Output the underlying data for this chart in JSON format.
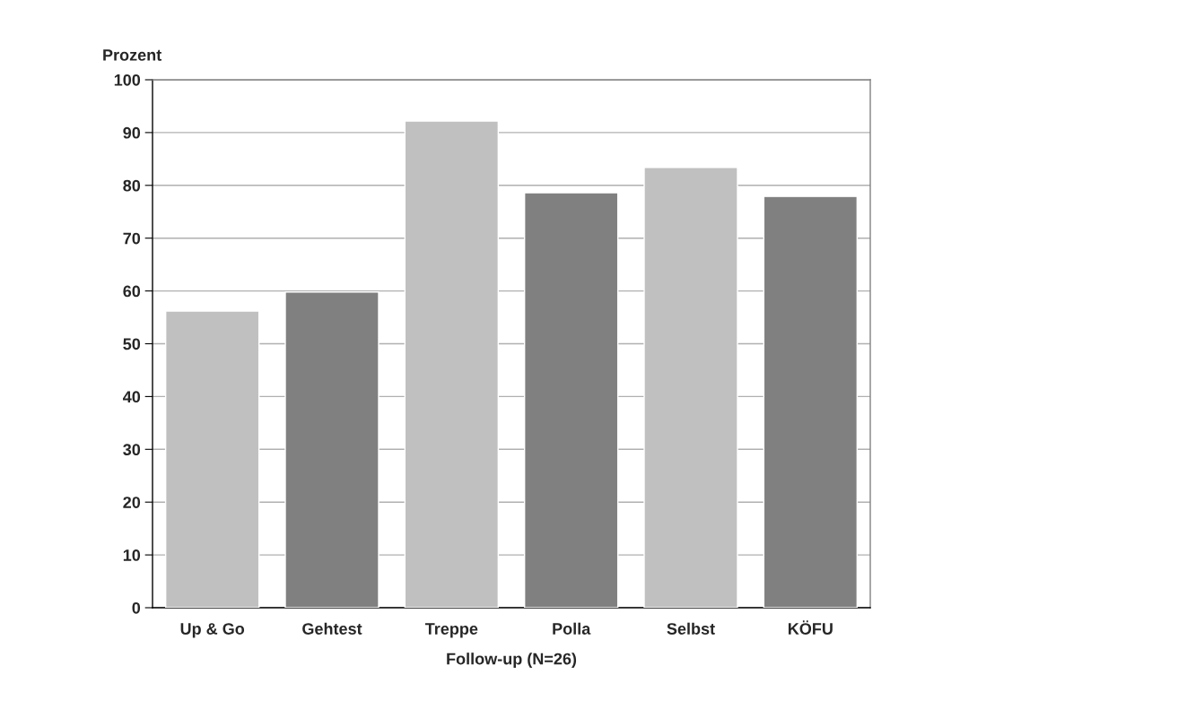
{
  "chart_data": {
    "type": "bar",
    "ylabel": "Prozent",
    "xlabel": "Follow-up (N=26)",
    "categories": [
      "Up & Go",
      "Gehtest",
      "Treppe",
      "Polla",
      "Selbst",
      "KÖFU"
    ],
    "values": [
      56.2,
      59.8,
      92.2,
      78.6,
      83.4,
      77.9
    ],
    "colors": [
      "#c0c0c0",
      "#808080",
      "#c0c0c0",
      "#808080",
      "#c0c0c0",
      "#808080"
    ],
    "ylim": [
      0,
      100
    ],
    "yticks": [
      0,
      10,
      20,
      30,
      40,
      50,
      60,
      70,
      80,
      90,
      100
    ],
    "grid": "y",
    "legend": false
  }
}
